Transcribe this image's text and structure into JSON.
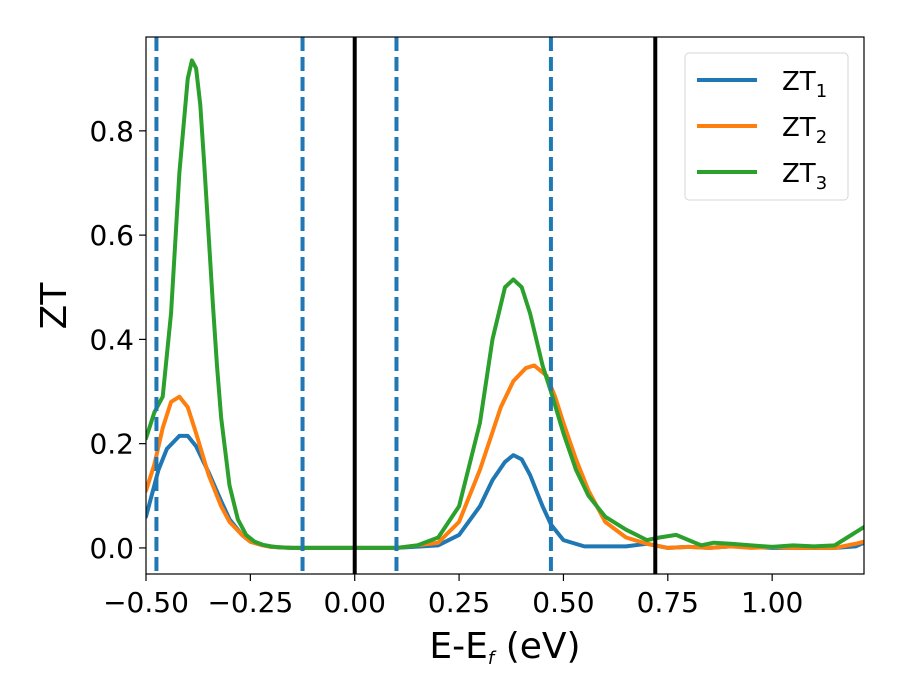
{
  "chart_data": {
    "type": "line",
    "xlabel": {
      "main": "E-E",
      "sub": "f",
      "suffix": " (eV)"
    },
    "ylabel": "ZT",
    "xlim": [
      -0.5,
      1.22
    ],
    "ylim": [
      -0.05,
      0.98
    ],
    "xticks": [
      -0.5,
      -0.25,
      0.0,
      0.25,
      0.5,
      0.75,
      1.0
    ],
    "xtick_labels": [
      "−0.50",
      "−0.25",
      "0.00",
      "0.25",
      "0.50",
      "0.75",
      "1.00"
    ],
    "yticks": [
      0.0,
      0.2,
      0.4,
      0.6,
      0.8
    ],
    "ytick_labels": [
      "0.0",
      "0.2",
      "0.4",
      "0.6",
      "0.8"
    ],
    "grid": false,
    "legend_position": "top-right",
    "vlines_solid": [
      0.0,
      0.72
    ],
    "vlines_dashed": [
      -0.475,
      -0.125,
      0.1,
      0.47
    ],
    "vline_solid_color": "#000000",
    "vline_dashed_color": "#1f77b4",
    "series": [
      {
        "name": "ZT",
        "sub": "1",
        "color": "#1f77b4",
        "x": [
          -0.5,
          -0.47,
          -0.45,
          -0.42,
          -0.4,
          -0.38,
          -0.35,
          -0.32,
          -0.3,
          -0.27,
          -0.25,
          -0.22,
          -0.2,
          -0.15,
          -0.1,
          0.0,
          0.1,
          0.2,
          0.25,
          0.3,
          0.33,
          0.36,
          0.38,
          0.4,
          0.42,
          0.45,
          0.47,
          0.5,
          0.55,
          0.6,
          0.65,
          0.7,
          0.75,
          0.8,
          0.85,
          0.9,
          0.95,
          1.0,
          1.05,
          1.1,
          1.15,
          1.2,
          1.22
        ],
        "y": [
          0.06,
          0.15,
          0.19,
          0.215,
          0.215,
          0.195,
          0.145,
          0.09,
          0.055,
          0.025,
          0.012,
          0.005,
          0.002,
          0.0,
          0.0,
          0.0,
          0.0,
          0.005,
          0.025,
          0.08,
          0.13,
          0.165,
          0.178,
          0.17,
          0.14,
          0.08,
          0.045,
          0.015,
          0.003,
          0.003,
          0.003,
          0.008,
          0.0,
          0.002,
          0.0,
          0.003,
          0.002,
          0.0,
          0.0,
          0.0,
          0.0,
          0.003,
          0.01
        ]
      },
      {
        "name": "ZT",
        "sub": "2",
        "color": "#ff7f0e",
        "x": [
          -0.5,
          -0.48,
          -0.46,
          -0.44,
          -0.42,
          -0.4,
          -0.38,
          -0.35,
          -0.32,
          -0.3,
          -0.27,
          -0.25,
          -0.22,
          -0.2,
          -0.15,
          -0.1,
          0.0,
          0.1,
          0.2,
          0.25,
          0.3,
          0.35,
          0.38,
          0.41,
          0.43,
          0.46,
          0.48,
          0.5,
          0.53,
          0.56,
          0.6,
          0.65,
          0.7,
          0.75,
          0.8,
          0.85,
          0.9,
          0.95,
          1.0,
          1.05,
          1.1,
          1.15,
          1.2,
          1.22
        ],
        "y": [
          0.11,
          0.16,
          0.23,
          0.28,
          0.29,
          0.27,
          0.22,
          0.14,
          0.08,
          0.05,
          0.025,
          0.012,
          0.005,
          0.002,
          0.0,
          0.0,
          0.0,
          0.0,
          0.01,
          0.05,
          0.15,
          0.27,
          0.32,
          0.345,
          0.35,
          0.33,
          0.29,
          0.24,
          0.17,
          0.11,
          0.05,
          0.02,
          0.008,
          0.0,
          0.002,
          0.0,
          0.003,
          0.0,
          0.002,
          0.0,
          0.0,
          0.0,
          0.008,
          0.012
        ]
      },
      {
        "name": "ZT",
        "sub": "3",
        "color": "#2ca02c",
        "x": [
          -0.5,
          -0.48,
          -0.46,
          -0.44,
          -0.42,
          -0.4,
          -0.39,
          -0.38,
          -0.37,
          -0.36,
          -0.35,
          -0.34,
          -0.33,
          -0.32,
          -0.3,
          -0.28,
          -0.26,
          -0.24,
          -0.22,
          -0.2,
          -0.18,
          -0.15,
          -0.1,
          0.0,
          0.1,
          0.15,
          0.2,
          0.25,
          0.3,
          0.33,
          0.36,
          0.38,
          0.4,
          0.42,
          0.45,
          0.47,
          0.5,
          0.53,
          0.56,
          0.6,
          0.65,
          0.7,
          0.73,
          0.77,
          0.8,
          0.83,
          0.86,
          0.9,
          0.95,
          1.0,
          1.05,
          1.1,
          1.15,
          1.18,
          1.22
        ],
        "y": [
          0.21,
          0.26,
          0.29,
          0.45,
          0.72,
          0.9,
          0.935,
          0.92,
          0.85,
          0.73,
          0.6,
          0.47,
          0.35,
          0.25,
          0.12,
          0.055,
          0.025,
          0.012,
          0.006,
          0.003,
          0.001,
          0.0,
          0.0,
          0.0,
          0.0,
          0.005,
          0.02,
          0.08,
          0.24,
          0.4,
          0.5,
          0.515,
          0.5,
          0.45,
          0.35,
          0.3,
          0.22,
          0.15,
          0.1,
          0.06,
          0.035,
          0.015,
          0.02,
          0.025,
          0.015,
          0.005,
          0.01,
          0.008,
          0.005,
          0.002,
          0.005,
          0.003,
          0.005,
          0.02,
          0.04
        ]
      }
    ]
  }
}
